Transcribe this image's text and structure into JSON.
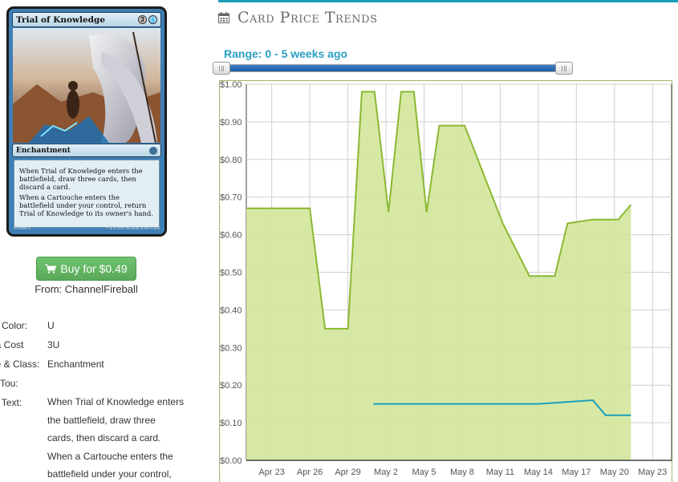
{
  "card": {
    "name": "Trial of Knowledge",
    "mana_generic": "3",
    "mana_color_symbol": "blue-mana-icon",
    "type_line": "Enchantment",
    "rules_text": [
      "When Trial of Knowledge enters the battlefield, draw three cards, then discard a card.",
      "When a Cartouche enters the battlefield under your control, return Trial of Knowledge to its owner's hand."
    ],
    "collector_number": "073/269 U",
    "copyright": "™ & © 2017 Wizards of the Coast"
  },
  "buy": {
    "label": "Buy for $0.49",
    "vendor": "From: ChannelFireball"
  },
  "attributes": [
    {
      "label": "rd Color:",
      "value": "U"
    },
    {
      "label": "na Cost",
      "value": "3U"
    },
    {
      "label": "pe & Class:",
      "value": "Enchantment"
    },
    {
      "label": "w/Tou:",
      "value": ""
    },
    {
      "label": "rd Text:",
      "value": ""
    }
  ],
  "card_text_lines": [
    "When Trial of Knowledge enters",
    "the battlefield, draw three",
    "cards, then discard a card.",
    "When a Cartouche enters the",
    "battlefield under your control,"
  ],
  "section": {
    "title": "Card Price Trends",
    "icon": "calendar-icon"
  },
  "range": {
    "label": "Range: 0 - 5 weeks ago"
  },
  "colors": {
    "accent": "#1a9eb8",
    "range_text": "#2a9fc2",
    "series_retail_line": "#8cb832",
    "series_retail_fill": "#d3e59b",
    "series_buy_line": "#1a9eb8",
    "buy_button": "#5cb85c"
  },
  "chart_data": {
    "type": "area",
    "title": "",
    "xlabel": "",
    "ylabel": "",
    "ylim": [
      0,
      1.0
    ],
    "y_ticks": [
      "$0.00",
      "$0.10",
      "$0.20",
      "$0.30",
      "$0.40",
      "$0.50",
      "$0.60",
      "$0.70",
      "$0.80",
      "$0.90",
      "$1.00"
    ],
    "x_ticks": [
      "Apr 23",
      "Apr 26",
      "Apr 29",
      "May 2",
      "May 5",
      "May 8",
      "May 11",
      "May 14",
      "May 17",
      "May 20",
      "May 23"
    ],
    "x_tick_days": [
      2,
      5,
      8,
      11,
      14,
      17,
      20,
      23,
      26,
      29,
      32
    ],
    "x_range_days": [
      0,
      33.5
    ],
    "grid": true,
    "series": [
      {
        "kind": "area",
        "days": [
          0,
          5,
          6.2,
          8,
          9.1,
          10.1,
          11.2,
          12.2,
          13.2,
          14.2,
          15.2,
          17.2,
          20.2,
          22.3,
          24.3,
          25.3,
          27.3,
          29.3,
          30.3
        ],
        "values": [
          0.67,
          0.67,
          0.35,
          0.35,
          0.98,
          0.98,
          0.66,
          0.98,
          0.98,
          0.66,
          0.89,
          0.89,
          0.63,
          0.49,
          0.49,
          0.63,
          0.64,
          0.64,
          0.68
        ]
      },
      {
        "kind": "line",
        "days": [
          10,
          23,
          27.3,
          28.3,
          30.3
        ],
        "values": [
          0.15,
          0.15,
          0.16,
          0.12,
          0.12
        ]
      }
    ]
  }
}
